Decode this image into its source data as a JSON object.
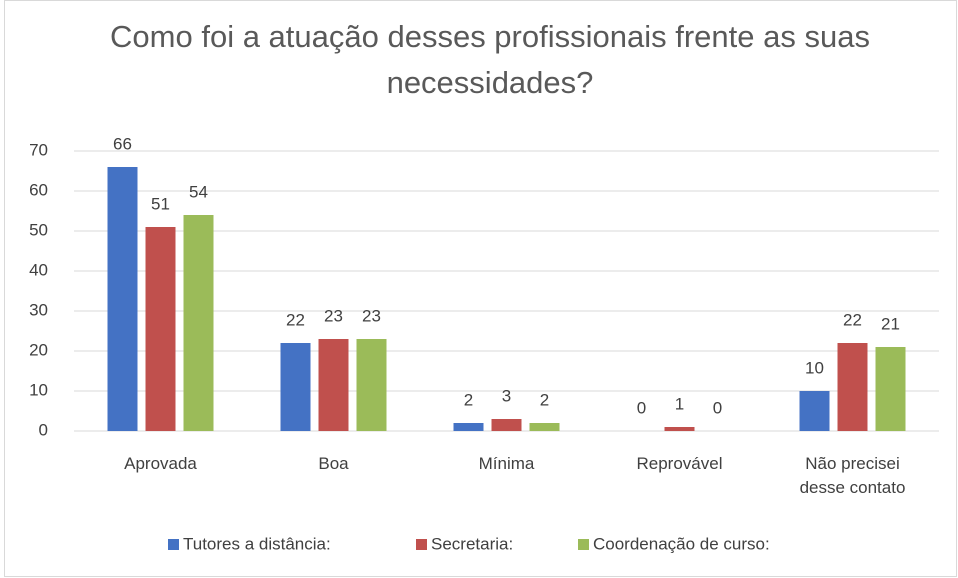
{
  "chart_data": {
    "type": "bar",
    "title": "Como foi a atuação desses profissionais frente as suas necessidades?",
    "categories": [
      "Aprovada",
      "Boa",
      "Mínima",
      "Reprovável",
      "Não precisei desse contato"
    ],
    "series": [
      {
        "name": "Tutores a distância:",
        "color": "#4472c4",
        "values": [
          66,
          22,
          2,
          0,
          10
        ]
      },
      {
        "name": "Secretaria:",
        "color": "#c0504d",
        "values": [
          51,
          23,
          3,
          1,
          22
        ]
      },
      {
        "name": "Coordenação de curso:",
        "color": "#9bbb59",
        "values": [
          54,
          23,
          2,
          0,
          21
        ]
      }
    ],
    "ylim": [
      0,
      70
    ],
    "yticks": [
      0,
      10,
      20,
      30,
      40,
      50,
      60,
      70
    ],
    "grid": true,
    "legend": "bottom"
  }
}
